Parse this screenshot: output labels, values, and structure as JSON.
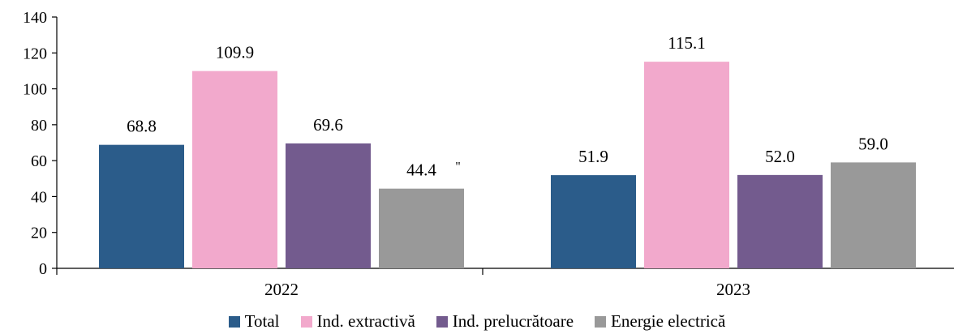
{
  "chart_data": {
    "type": "bar",
    "title": "",
    "xlabel": "",
    "ylabel": "",
    "categories": [
      "2022",
      "2023"
    ],
    "ylim": [
      0,
      140
    ],
    "yticks": [
      0,
      20,
      40,
      60,
      80,
      100,
      120,
      140
    ],
    "grid": false,
    "legend_position": "bottom",
    "series": [
      {
        "name": "Total",
        "color": "#2B5C8A",
        "values": [
          68.8,
          51.9
        ],
        "labels": [
          "68.8",
          "51.9"
        ]
      },
      {
        "name": "Ind. extractivă",
        "color": "#F2A9CC",
        "values": [
          109.9,
          115.1
        ],
        "labels": [
          "109.9",
          "115.1"
        ]
      },
      {
        "name": "Ind. prelucrătoare",
        "color": "#735B8E",
        "values": [
          69.6,
          52.0
        ],
        "labels": [
          "69.6",
          "52.0"
        ]
      },
      {
        "name": "Energie electrică",
        "color": "#999999",
        "values": [
          44.4,
          59.0
        ],
        "labels": [
          "44.4",
          "59.0"
        ]
      }
    ],
    "annotations": [
      {
        "text": "\"",
        "category": "2022",
        "series": "Energie electrică"
      }
    ]
  }
}
